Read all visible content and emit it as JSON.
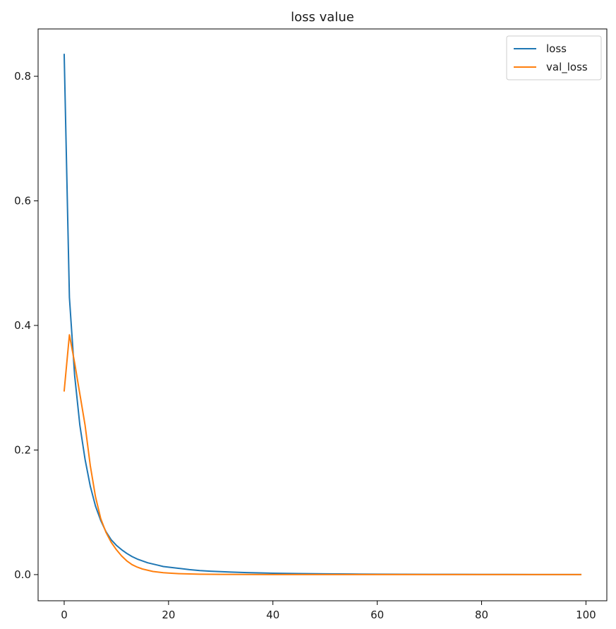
{
  "chart_data": {
    "type": "line",
    "title": "loss value",
    "xlabel": "",
    "ylabel": "",
    "xlim": [
      -5,
      104
    ],
    "ylim": [
      -0.042,
      0.876
    ],
    "xticks": [
      0,
      20,
      40,
      60,
      80,
      100
    ],
    "yticks": [
      0.0,
      0.2,
      0.4,
      0.6,
      0.8
    ],
    "xtick_labels": [
      "0",
      "20",
      "40",
      "60",
      "80",
      "100"
    ],
    "ytick_labels": [
      "0.0",
      "0.2",
      "0.4",
      "0.6",
      "0.8"
    ],
    "grid": false,
    "legend_position": "top-right",
    "series": [
      {
        "name": "loss",
        "color": "#1f77b4",
        "x": [
          0,
          1,
          2,
          3,
          4,
          5,
          6,
          7,
          8,
          9,
          10,
          11,
          12,
          13,
          14,
          15,
          16,
          17,
          18,
          19,
          20,
          22,
          24,
          26,
          28,
          30,
          32,
          35,
          38,
          40,
          45,
          50,
          55,
          60,
          65,
          70,
          75,
          80,
          85,
          90,
          95,
          99
        ],
        "y": [
          0.835,
          0.445,
          0.32,
          0.24,
          0.185,
          0.142,
          0.11,
          0.087,
          0.069,
          0.056,
          0.047,
          0.04,
          0.034,
          0.029,
          0.025,
          0.022,
          0.019,
          0.017,
          0.015,
          0.013,
          0.012,
          0.01,
          0.008,
          0.0065,
          0.0055,
          0.0047,
          0.004,
          0.0032,
          0.0026,
          0.0022,
          0.0016,
          0.0012,
          0.0009,
          0.0007,
          0.0005,
          0.0004,
          0.0003,
          0.0002,
          0.0002,
          0.0001,
          0.0001,
          0.0001
        ]
      },
      {
        "name": "val_loss",
        "color": "#ff7f0e",
        "x": [
          0,
          1,
          2,
          3,
          4,
          5,
          6,
          7,
          8,
          9,
          10,
          11,
          12,
          13,
          14,
          15,
          16,
          17,
          18,
          19,
          20,
          22,
          24,
          26,
          28,
          30,
          35,
          40,
          50,
          60,
          70,
          80,
          90,
          99
        ],
        "y": [
          0.295,
          0.385,
          0.34,
          0.29,
          0.24,
          0.175,
          0.125,
          0.09,
          0.068,
          0.052,
          0.04,
          0.03,
          0.022,
          0.016,
          0.012,
          0.009,
          0.007,
          0.005,
          0.004,
          0.003,
          0.0025,
          0.0015,
          0.001,
          0.0007,
          0.0005,
          0.0004,
          0.0002,
          0.0001,
          0.0001,
          0.0001,
          0.0001,
          0.0001,
          0.0001,
          0.0001
        ]
      }
    ]
  }
}
